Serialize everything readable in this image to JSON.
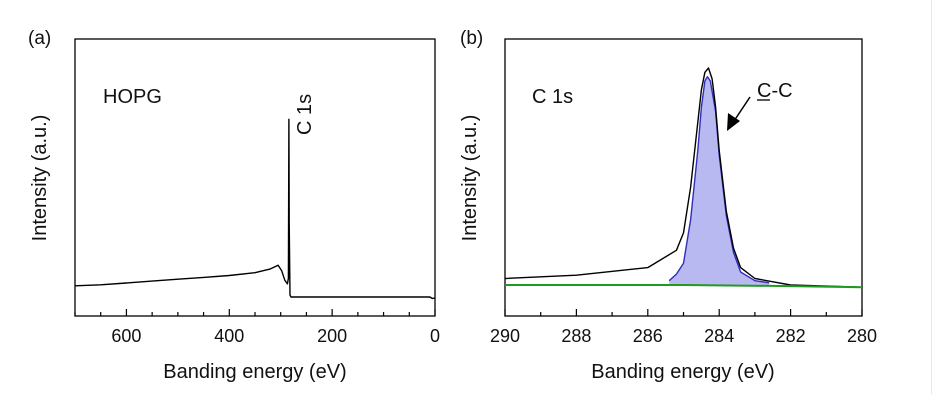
{
  "chart_data": [
    {
      "type": "line",
      "panel_label": "(a)",
      "annotations": [
        "HOPG",
        "C 1s"
      ],
      "xlabel": "Banding energy (eV)",
      "ylabel": "Intensity (a.u.)",
      "xlim": [
        700,
        0
      ],
      "x_ticks": [
        600,
        400,
        200,
        0
      ],
      "y_ticks": [],
      "grid": false,
      "series": [
        {
          "color": "#000000",
          "points": [
            [
              700,
              0.06
            ],
            [
              650,
              0.065
            ],
            [
              600,
              0.075
            ],
            [
              550,
              0.085
            ],
            [
              500,
              0.095
            ],
            [
              450,
              0.105
            ],
            [
              400,
              0.115
            ],
            [
              350,
              0.13
            ],
            [
              320,
              0.15
            ],
            [
              305,
              0.17
            ],
            [
              298,
              0.14
            ],
            [
              292,
              0.09
            ],
            [
              287,
              0.07
            ],
            [
              285,
              0.1
            ],
            [
              284.5,
              0.6
            ],
            [
              284,
              0.95
            ],
            [
              283.5,
              0.4
            ],
            [
              282,
              0.01
            ],
            [
              280,
              0.0
            ],
            [
              250,
              0.0
            ],
            [
              200,
              0.0
            ],
            [
              150,
              0.0
            ],
            [
              100,
              0.0
            ],
            [
              50,
              0.0
            ],
            [
              10,
              0.0
            ],
            [
              5,
              -0.008
            ],
            [
              0,
              -0.005
            ]
          ]
        }
      ]
    },
    {
      "type": "line",
      "panel_label": "(b)",
      "annotations": [
        "C 1s",
        "C-C"
      ],
      "xlabel": "Banding energy (eV)",
      "ylabel": "Intensity (a.u.)",
      "xlim": [
        290,
        280
      ],
      "x_ticks": [
        290,
        288,
        286,
        284,
        282,
        280
      ],
      "y_ticks": [],
      "grid": false,
      "series": [
        {
          "role": "measured",
          "color": "#000000",
          "points": [
            [
              290,
              0.03
            ],
            [
              288,
              0.045
            ],
            [
              286,
              0.08
            ],
            [
              285.2,
              0.16
            ],
            [
              285,
              0.24
            ],
            [
              284.8,
              0.45
            ],
            [
              284.6,
              0.75
            ],
            [
              284.5,
              0.9
            ],
            [
              284.4,
              0.98
            ],
            [
              284.3,
              1.0
            ],
            [
              284.2,
              0.95
            ],
            [
              284.1,
              0.82
            ],
            [
              284,
              0.62
            ],
            [
              283.8,
              0.34
            ],
            [
              283.6,
              0.17
            ],
            [
              283.4,
              0.08
            ],
            [
              283,
              0.03
            ],
            [
              282,
              0.0
            ],
            [
              280,
              -0.01
            ]
          ]
        },
        {
          "role": "C-C fit",
          "color": "#2f2fb8",
          "fill": "#b9b9f2",
          "points": [
            [
              285.4,
              0.02
            ],
            [
              285.2,
              0.05
            ],
            [
              285,
              0.1
            ],
            [
              284.8,
              0.3
            ],
            [
              284.6,
              0.62
            ],
            [
              284.5,
              0.82
            ],
            [
              284.4,
              0.94
            ],
            [
              284.33,
              0.96
            ],
            [
              284.25,
              0.94
            ],
            [
              284.1,
              0.8
            ],
            [
              284,
              0.6
            ],
            [
              283.8,
              0.32
            ],
            [
              283.6,
              0.15
            ],
            [
              283.4,
              0.06
            ],
            [
              283,
              0.02
            ],
            [
              282.6,
              0.01
            ]
          ]
        },
        {
          "role": "background",
          "color": "#1f9b1f",
          "points": [
            [
              290,
              0.0
            ],
            [
              285,
              0.0
            ],
            [
              282,
              -0.005
            ],
            [
              280,
              -0.01
            ]
          ]
        }
      ]
    }
  ]
}
